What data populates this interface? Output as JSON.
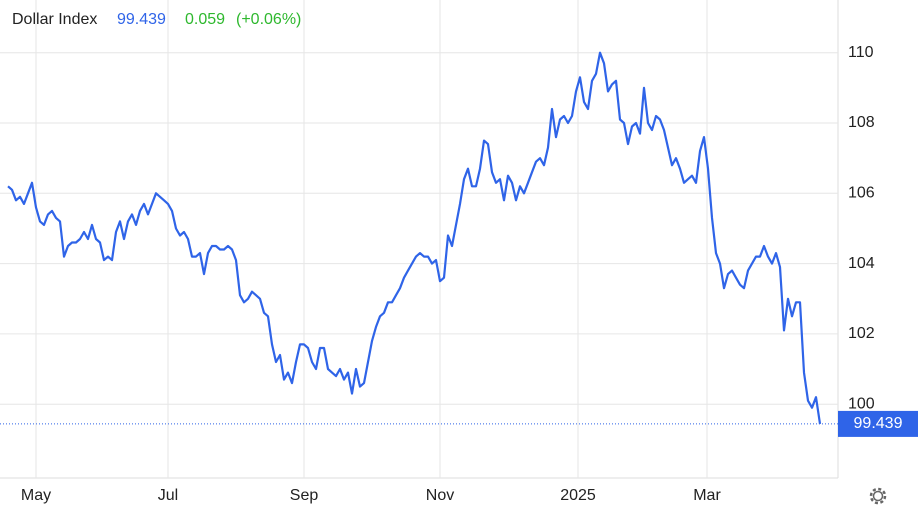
{
  "chart_data": {
    "type": "line",
    "title": "Dollar Index",
    "last_price": "99.439",
    "change": "0.059",
    "change_pct": "(+0.06%)",
    "series": [
      {
        "name": "Dollar Index",
        "color": "#2f64e8",
        "values": [
          106.2,
          106.1,
          105.8,
          105.9,
          105.7,
          106.0,
          106.3,
          105.6,
          105.2,
          105.1,
          105.4,
          105.5,
          105.3,
          105.2,
          104.2,
          104.5,
          104.6,
          104.6,
          104.7,
          104.9,
          104.7,
          105.1,
          104.7,
          104.6,
          104.1,
          104.2,
          104.1,
          104.9,
          105.2,
          104.7,
          105.2,
          105.4,
          105.1,
          105.5,
          105.7,
          105.4,
          105.7,
          106.0,
          105.9,
          105.8,
          105.7,
          105.5,
          105.0,
          104.8,
          104.9,
          104.7,
          104.2,
          104.2,
          104.3,
          103.7,
          104.3,
          104.5,
          104.5,
          104.4,
          104.4,
          104.5,
          104.4,
          104.1,
          103.1,
          102.9,
          103.0,
          103.2,
          103.1,
          103.0,
          102.6,
          102.5,
          101.7,
          101.2,
          101.4,
          100.7,
          100.9,
          100.6,
          101.2,
          101.7,
          101.7,
          101.6,
          101.2,
          101.0,
          101.6,
          101.6,
          101.0,
          100.9,
          100.8,
          101.0,
          100.7,
          100.9,
          100.3,
          101.0,
          100.5,
          100.6,
          101.2,
          101.8,
          102.2,
          102.5,
          102.6,
          102.9,
          102.9,
          103.1,
          103.3,
          103.6,
          103.8,
          104.0,
          104.2,
          104.3,
          104.2,
          104.2,
          104.0,
          104.1,
          103.5,
          103.6,
          104.8,
          104.5,
          105.1,
          105.7,
          106.4,
          106.7,
          106.2,
          106.2,
          106.7,
          107.5,
          107.4,
          106.6,
          106.3,
          106.4,
          105.8,
          106.5,
          106.3,
          105.8,
          106.2,
          106.0,
          106.3,
          106.6,
          106.9,
          107.0,
          106.8,
          107.3,
          108.4,
          107.6,
          108.1,
          108.2,
          108.0,
          108.2,
          108.9,
          109.3,
          108.6,
          108.4,
          109.2,
          109.4,
          110.0,
          109.7,
          108.9,
          109.1,
          109.2,
          108.1,
          108.0,
          107.4,
          107.9,
          108.0,
          107.7,
          109.0,
          108.0,
          107.8,
          108.2,
          108.1,
          107.8,
          107.3,
          106.8,
          107.0,
          106.7,
          106.3,
          106.4,
          106.5,
          106.3,
          107.2,
          107.6,
          106.7,
          105.3,
          104.3,
          104.0,
          103.3,
          103.7,
          103.8,
          103.6,
          103.4,
          103.3,
          103.8,
          104.0,
          104.2,
          104.2,
          104.5,
          104.2,
          104.0,
          104.3,
          103.9,
          102.1,
          103.0,
          102.5,
          102.9,
          102.9,
          100.9,
          100.1,
          99.9,
          100.2,
          99.439
        ]
      }
    ],
    "xlim": [
      0,
      203
    ],
    "xticks": [
      {
        "value": 7,
        "label": "May"
      },
      {
        "value": 40,
        "label": "Jul"
      },
      {
        "value": 74,
        "label": "Sep"
      },
      {
        "value": 108,
        "label": "Nov"
      },
      {
        "value": 142.5,
        "label": "2025"
      },
      {
        "value": 174.75,
        "label": "Mar"
      }
    ],
    "ylim": [
      97.9,
      111.5
    ],
    "yticks": [
      100,
      102,
      104,
      106,
      108,
      110
    ],
    "grid": true
  }
}
